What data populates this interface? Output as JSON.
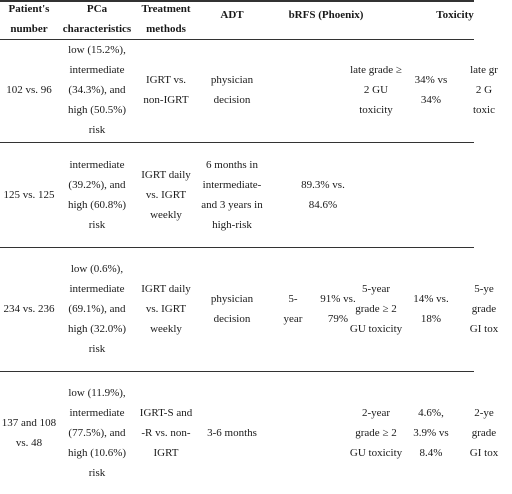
{
  "table": {
    "headers": {
      "patients": "Patient's\nnumber",
      "pca": "PCa\ncharacteristics",
      "treatment": "Treatment\nmethods",
      "adt": "ADT",
      "brfs": "bRFS (Phoenix)",
      "toxicity": "Toxicity"
    },
    "rows": [
      {
        "patients": "102 vs. 96",
        "pca": "low (15.2%),\nintermediate\n(34.3%), and\nhigh (50.5%)\nrisk",
        "treatment": "IGRT vs.\nnon-IGRT",
        "adt": "physician\ndecision",
        "brfs_time": "",
        "brfs_value": "",
        "tox_type": "late grade ≥\n2 GU\ntoxicity",
        "tox_value": "34% vs\n34%",
        "tox_extra": "late gr\n2 G\ntoxic"
      },
      {
        "patients": "125 vs. 125",
        "pca": "intermediate\n(39.2%), and\nhigh (60.8%)\nrisk",
        "treatment": "IGRT daily\nvs. IGRT\nweekly",
        "adt": "6 months in\nintermediate-\nand 3 years in\nhigh-risk",
        "brfs_time": "",
        "brfs_value": "89.3% vs.\n84.6%",
        "tox_type": "",
        "tox_value": "",
        "tox_extra": ""
      },
      {
        "patients": "234 vs. 236",
        "pca": "low (0.6%),\nintermediate\n(69.1%), and\nhigh (32.0%)\nrisk",
        "treatment": "IGRT daily\nvs. IGRT\nweekly",
        "adt": "physician\ndecision",
        "brfs_time": "5-\nyear",
        "brfs_value": "91% vs.\n79%",
        "tox_type": "5-year\ngrade ≥ 2\nGU toxicity",
        "tox_value": "14% vs.\n18%",
        "tox_extra": "5-ye\ngrade\nGI tox"
      },
      {
        "patients": "137 and 108\nvs. 48",
        "pca": "low (11.9%),\nintermediate\n(77.5%), and\nhigh (10.6%)\nrisk",
        "treatment": "IGRT-S and\n-R vs. non-\nIGRT",
        "adt": "3-6 months",
        "brfs_time": "",
        "brfs_value": "",
        "tox_type": "2-year\ngrade ≥ 2\nGU toxicity",
        "tox_value": "4.6%,\n3.9% vs\n8.4%",
        "tox_extra": "2-ye\ngrade\nGI tox"
      }
    ]
  }
}
